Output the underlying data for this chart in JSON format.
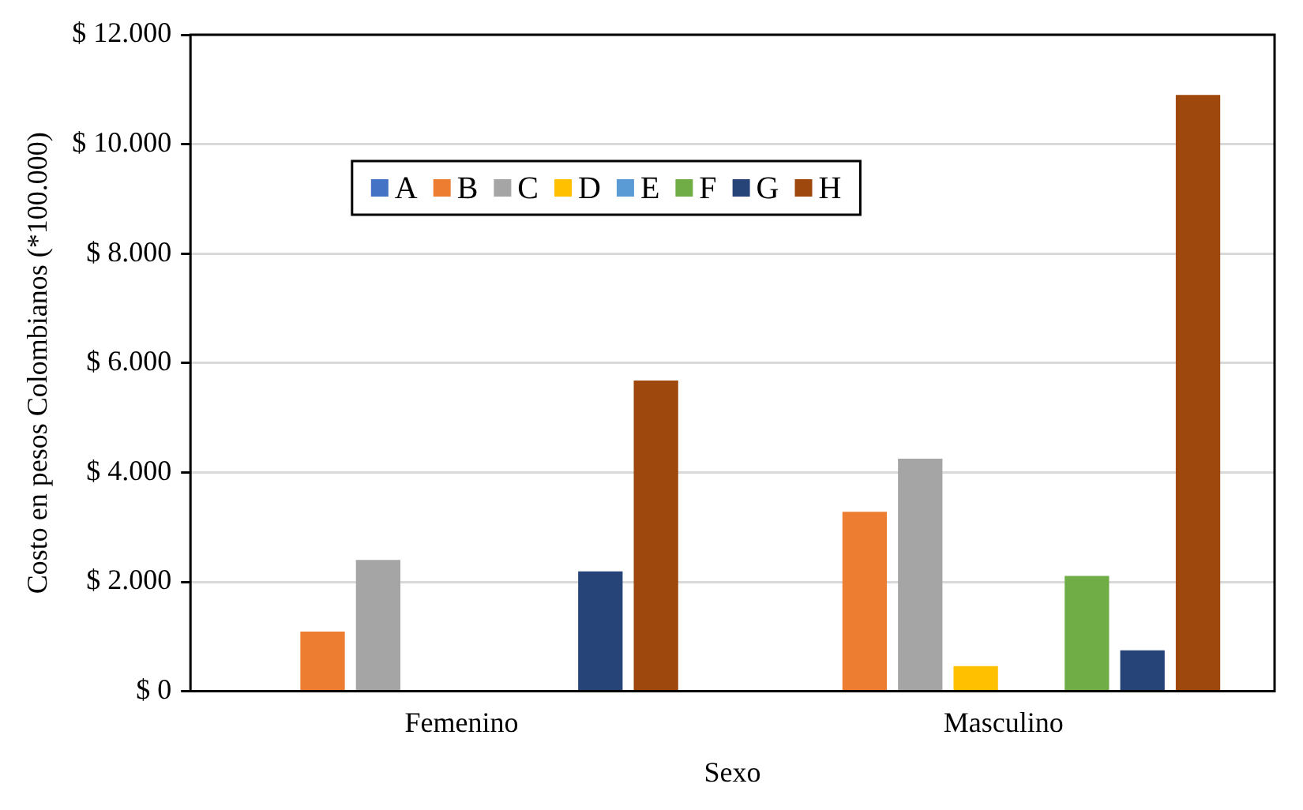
{
  "chart_data": {
    "type": "bar",
    "xlabel": "Sexo",
    "ylabel": "Costo en pesos Colombianos (*100.000)",
    "categories": [
      "Femenino",
      "Masculino"
    ],
    "series": [
      {
        "name": "A",
        "color": "#4472c4",
        "values": [
          0,
          0
        ]
      },
      {
        "name": "B",
        "color": "#ed7d31",
        "values": [
          1090,
          3280
        ]
      },
      {
        "name": "C",
        "color": "#a5a5a5",
        "values": [
          2400,
          4250
        ]
      },
      {
        "name": "D",
        "color": "#ffc000",
        "values": [
          0,
          460
        ]
      },
      {
        "name": "E",
        "color": "#5b9bd5",
        "values": [
          0,
          0
        ]
      },
      {
        "name": "F",
        "color": "#70ad47",
        "values": [
          0,
          2110
        ]
      },
      {
        "name": "G",
        "color": "#264478",
        "values": [
          2190,
          750
        ]
      },
      {
        "name": "H",
        "color": "#9e480e",
        "values": [
          5680,
          10900
        ]
      }
    ],
    "ylim": [
      0,
      12000
    ],
    "yticks": [
      {
        "value": 0,
        "label": "$ 0"
      },
      {
        "value": 2000,
        "label": "$ 2.000"
      },
      {
        "value": 4000,
        "label": "$ 4.000"
      },
      {
        "value": 6000,
        "label": "$ 6.000"
      },
      {
        "value": 8000,
        "label": "$ 8.000"
      },
      {
        "value": 10000,
        "label": "$ 10.000"
      },
      {
        "value": 12000,
        "label": "$ 12.000"
      }
    ],
    "grid": "y",
    "legend": "top"
  }
}
